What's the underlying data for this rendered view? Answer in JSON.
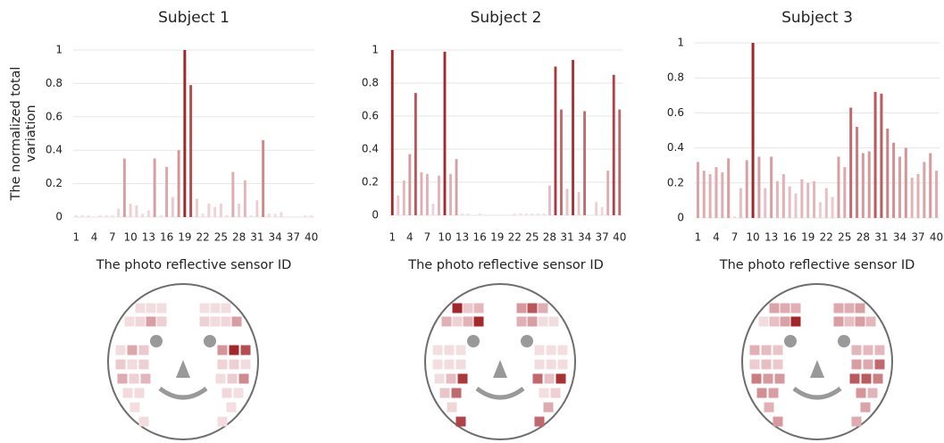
{
  "chart_data": [
    {
      "type": "bar",
      "title": "Subject 1",
      "y_label": "The normalized total variation",
      "x_label": "The photo reflective sensor ID",
      "categories": [
        "1",
        null,
        null,
        "4",
        null,
        null,
        "7",
        null,
        null,
        "10",
        null,
        null,
        "13",
        null,
        null,
        "16",
        null,
        null,
        "19",
        null,
        null,
        "22",
        null,
        null,
        "25",
        null,
        null,
        "28",
        null,
        null,
        "31",
        null,
        null,
        "34",
        null,
        null,
        "37",
        null,
        null,
        "40"
      ],
      "values": [
        0.01,
        0.01,
        0.01,
        0,
        0.01,
        0.01,
        0.01,
        0.05,
        0.35,
        0.08,
        0.07,
        0.02,
        0.04,
        0.35,
        0.01,
        0.3,
        0.12,
        0.4,
        1,
        0.79,
        0.11,
        0.02,
        0.08,
        0.06,
        0.08,
        0.01,
        0.27,
        0.08,
        0.22,
        0.01,
        0.1,
        0.46,
        0.02,
        0.02,
        0.03,
        0,
        0,
        0,
        0.01,
        0.01
      ],
      "ylim": [
        0,
        1
      ],
      "yticks": [
        0,
        0.2,
        0.4,
        0.6,
        0.8,
        1
      ],
      "grid": true,
      "color": "#a3262a"
    },
    {
      "type": "bar",
      "title": "Subject 2",
      "x_label": "The photo reflective sensor ID",
      "categories": [
        "1",
        null,
        null,
        "4",
        null,
        null,
        "7",
        null,
        null,
        "10",
        null,
        null,
        "13",
        null,
        null,
        "16",
        null,
        null,
        "19",
        null,
        null,
        "22",
        null,
        null,
        "25",
        null,
        null,
        "28",
        null,
        null,
        "31",
        null,
        null,
        "34",
        null,
        null,
        "37",
        null,
        null,
        "40"
      ],
      "values": [
        1,
        0.12,
        0.21,
        0.37,
        0.74,
        0.26,
        0.25,
        0.07,
        0.24,
        0.99,
        0.25,
        0.34,
        0.01,
        0.01,
        0,
        0.01,
        0,
        0,
        0,
        0,
        0,
        0.01,
        0.01,
        0.01,
        0.01,
        0.01,
        0.01,
        0.18,
        0.9,
        0.64,
        0.16,
        0.94,
        0.14,
        0.63,
        0,
        0.08,
        0.05,
        0.27,
        0.85,
        0.64
      ],
      "ylim": [
        0,
        1
      ],
      "yticks": [
        0,
        0.2,
        0.4,
        0.6,
        0.8,
        1
      ],
      "grid": true,
      "color": "#a3262a"
    },
    {
      "type": "bar",
      "title": "Subject 3",
      "x_label": "The photo reflective sensor ID",
      "categories": [
        "1",
        null,
        null,
        "4",
        null,
        null,
        "7",
        null,
        null,
        "10",
        null,
        null,
        "13",
        null,
        null,
        "16",
        null,
        null,
        "19",
        null,
        null,
        "22",
        null,
        null,
        "25",
        null,
        null,
        "28",
        null,
        null,
        "31",
        null,
        null,
        "34",
        null,
        null,
        "37",
        null,
        null,
        "40"
      ],
      "values": [
        0.32,
        0.27,
        0.25,
        0.29,
        0.26,
        0.34,
        0.01,
        0.17,
        0.33,
        1,
        0.35,
        0.17,
        0.35,
        0.21,
        0.25,
        0.18,
        0.14,
        0.22,
        0.2,
        0.21,
        0.09,
        0.17,
        0.12,
        0.35,
        0.29,
        0.63,
        0.52,
        0.37,
        0.38,
        0.72,
        0.71,
        0.51,
        0.43,
        0.35,
        0.4,
        0.23,
        0.25,
        0.32,
        0.37,
        0.27
      ],
      "ylim": [
        0,
        1
      ],
      "yticks": [
        0,
        0.2,
        0.4,
        0.6,
        0.8,
        1
      ],
      "grid": true,
      "color": "#a3262a"
    }
  ]
}
